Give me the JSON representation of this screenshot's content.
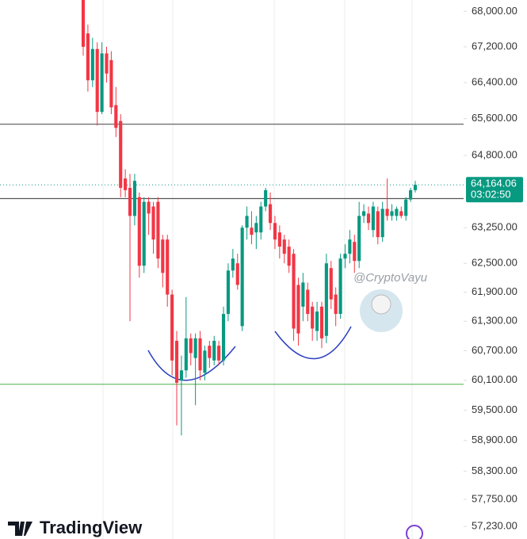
{
  "chart_data": {
    "type": "candlestick",
    "log_scale": true,
    "ylim": [
      56990,
      68260
    ],
    "yticks": [
      {
        "value": 68000,
        "label": "68,000.00"
      },
      {
        "value": 67200,
        "label": "67,200.00"
      },
      {
        "value": 66400,
        "label": "66,400.00"
      },
      {
        "value": 65600,
        "label": "65,600.00"
      },
      {
        "value": 64800,
        "label": "64,800.00"
      },
      {
        "value": 63250,
        "label": "63,250.00"
      },
      {
        "value": 62500,
        "label": "62,500.00"
      },
      {
        "value": 61900,
        "label": "61,900.00"
      },
      {
        "value": 61300,
        "label": "61,300.00"
      },
      {
        "value": 60700,
        "label": "60,700.00"
      },
      {
        "value": 60100,
        "label": "60,100.00"
      },
      {
        "value": 59500,
        "label": "59,500.00"
      },
      {
        "value": 58900,
        "label": "58,900.00"
      },
      {
        "value": 58300,
        "label": "58,300.00"
      },
      {
        "value": 57750,
        "label": "57,750.00"
      },
      {
        "value": 57230,
        "label": "57,230.00"
      }
    ],
    "up_color": "#089981",
    "down_color": "#f23645",
    "open": [
      68300,
      67500,
      66450,
      67150,
      65750,
      67050,
      66900,
      65900,
      65550,
      64300,
      64100,
      63500,
      63900,
      62450,
      63800,
      63700,
      63800,
      63000,
      63000,
      61850,
      60900,
      60100,
      60300,
      60950,
      60550,
      60950,
      60250,
      60800,
      60500,
      60800,
      60500,
      61450,
      62350,
      62500,
      61200,
      63250,
      63250,
      63150,
      63150,
      63700,
      63750,
      63350,
      63150,
      63000,
      62850,
      62700,
      62050,
      61600,
      61950,
      61600,
      61100,
      61600,
      61000,
      62400,
      61850,
      61450,
      62600,
      62700,
      62950,
      62550,
      63500,
      63550,
      63200,
      63600,
      63050,
      63650,
      63500,
      63500,
      63600,
      63500,
      63850,
      64050
    ],
    "high": [
      68400,
      67700,
      67400,
      67300,
      67300,
      67200,
      67100,
      66300,
      65700,
      64500,
      64400,
      64400,
      64000,
      63900,
      63900,
      63800,
      63900,
      63100,
      63100,
      61950,
      61100,
      60600,
      61800,
      61050,
      61050,
      61100,
      60800,
      60900,
      61000,
      60900,
      61600,
      62500,
      62800,
      62700,
      63300,
      63700,
      63600,
      63500,
      63800,
      64100,
      64000,
      63500,
      63300,
      63100,
      63000,
      62800,
      62200,
      62300,
      62100,
      61700,
      61700,
      61700,
      62700,
      62550,
      62000,
      62700,
      62900,
      63200,
      63100,
      63800,
      63750,
      63700,
      63800,
      63700,
      63800,
      64300,
      63750,
      63700,
      63700,
      63900,
      64100,
      64250
    ],
    "low": [
      67000,
      66200,
      66300,
      65450,
      65700,
      66400,
      65700,
      65200,
      63900,
      63900,
      61300,
      63300,
      62200,
      62300,
      63100,
      62700,
      62400,
      62000,
      61600,
      60200,
      59200,
      59000,
      60150,
      60400,
      59600,
      60100,
      60100,
      60350,
      60400,
      60400,
      60400,
      61300,
      62200,
      61950,
      61100,
      63000,
      62900,
      62800,
      63000,
      63600,
      63200,
      62800,
      62600,
      62500,
      62300,
      60900,
      60800,
      61300,
      61300,
      60900,
      60900,
      60750,
      60850,
      61550,
      61200,
      61350,
      62400,
      62500,
      62300,
      62400,
      63350,
      63200,
      63050,
      62900,
      62950,
      63400,
      63400,
      63400,
      63450,
      63400,
      63800,
      64000
    ],
    "close": [
      67200,
      66450,
      67150,
      65750,
      67050,
      66600,
      65850,
      65400,
      64100,
      64050,
      63500,
      64250,
      62450,
      63800,
      63550,
      63000,
      62600,
      62300,
      61850,
      60500,
      60050,
      60300,
      60950,
      60650,
      60950,
      60300,
      60700,
      60550,
      60900,
      60500,
      61450,
      62350,
      62600,
      62050,
      63250,
      63500,
      63100,
      63350,
      63700,
      64050,
      63350,
      63000,
      62850,
      62700,
      62450,
      61150,
      61050,
      62100,
      61450,
      61150,
      61500,
      60950,
      62500,
      61750,
      61450,
      62600,
      62700,
      63000,
      62550,
      63500,
      63600,
      63350,
      63700,
      63050,
      63650,
      63500,
      63600,
      63650,
      63500,
      63850,
      64050,
      64164.06
    ],
    "hlines": [
      {
        "value": 65480,
        "color": "#555555"
      },
      {
        "value": 63870,
        "color": "#555555"
      },
      {
        "value": 60020,
        "color": "#5cb85c"
      }
    ],
    "last_price": {
      "value": 64164.06,
      "label": "64,164.06",
      "countdown": "03:02:50",
      "color": "#089981"
    },
    "watermark": "@CryptoVayu",
    "brand": "TradingView"
  }
}
